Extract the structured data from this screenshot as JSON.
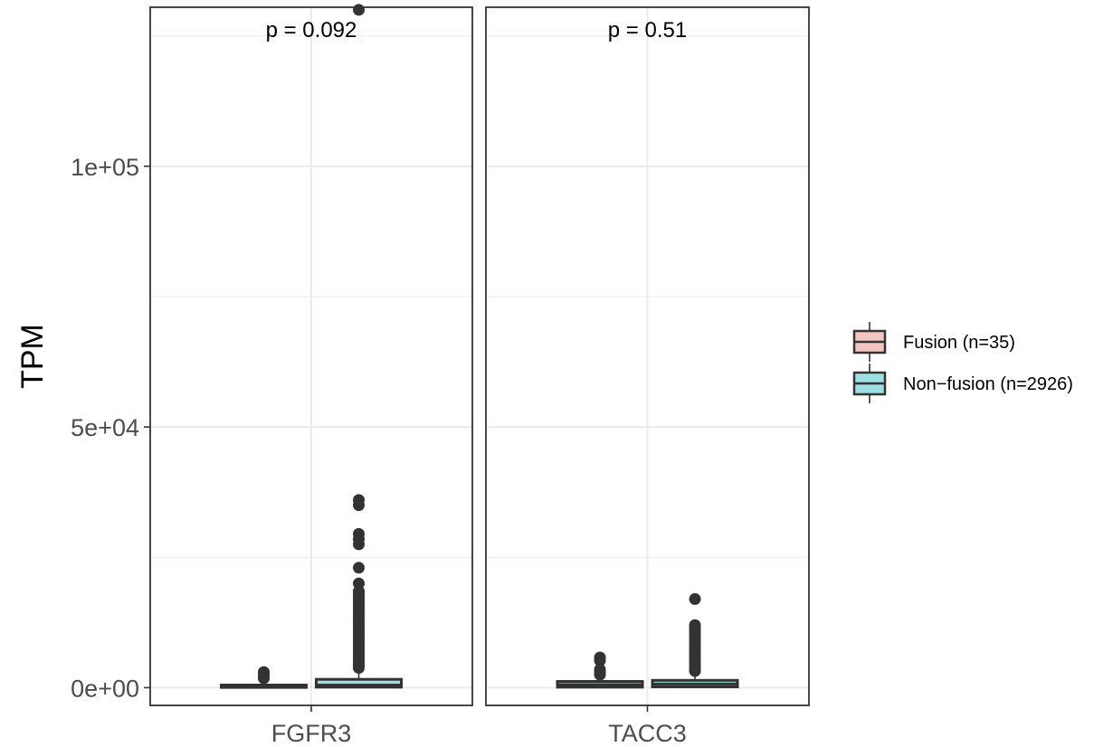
{
  "chart_data": {
    "type": "box",
    "ylabel": "TPM",
    "xlabel": "",
    "ylim": [
      -3400,
      130500
    ],
    "yticks": [
      {
        "value": 0,
        "label": "0e+00"
      },
      {
        "value": 50000,
        "label": "5e+04"
      },
      {
        "value": 100000,
        "label": "1e+05"
      }
    ],
    "grid": true,
    "legend": {
      "position": "right",
      "entries": [
        {
          "label": "Fusion (n=35)",
          "color": "#f4c6c2"
        },
        {
          "label": "Non−fusion (n=2926)",
          "color": "#9ddfe2"
        }
      ]
    },
    "panels": [
      {
        "label": "FGFR3",
        "pvalue_text": "p = 0.092",
        "series": [
          {
            "name": "Fusion (n=35)",
            "q1": 50,
            "median": 180,
            "q3": 500,
            "whisker_low": 0,
            "whisker_high": 700,
            "outliers": [
              1800,
              2200,
              2600,
              3000
            ]
          },
          {
            "name": "Non−fusion (n=2926)",
            "q1": 100,
            "median": 500,
            "q3": 1600,
            "whisker_low": 0,
            "whisker_high": 3000,
            "outliers": [
              3800,
              4200,
              4600,
              5000,
              5500,
              6000,
              6500,
              7000,
              7500,
              8000,
              8500,
              9000,
              9500,
              10000,
              10500,
              11000,
              11500,
              12000,
              12500,
              13000,
              13500,
              14000,
              14500,
              15000,
              15500,
              16000,
              16500,
              17000,
              17500,
              18000,
              18500,
              20000,
              23000,
              27500,
              28500,
              29500,
              35000,
              36000,
              130000
            ]
          }
        ]
      },
      {
        "label": "TACC3",
        "pvalue_text": "p = 0.51",
        "series": [
          {
            "name": "Fusion (n=35)",
            "q1": 100,
            "median": 600,
            "q3": 1200,
            "whisker_low": 0,
            "whisker_high": 1800,
            "outliers": [
              2500,
              3000,
              3500,
              5200,
              5800
            ]
          },
          {
            "name": "Non−fusion (n=2926)",
            "q1": 150,
            "median": 700,
            "q3": 1400,
            "whisker_low": 0,
            "whisker_high": 2800,
            "outliers": [
              3200,
              3500,
              4000,
              4500,
              5000,
              5500,
              6000,
              6500,
              7000,
              7500,
              8000,
              8500,
              9000,
              9500,
              10000,
              10500,
              11000,
              11500,
              12000,
              17000
            ]
          }
        ]
      }
    ]
  }
}
